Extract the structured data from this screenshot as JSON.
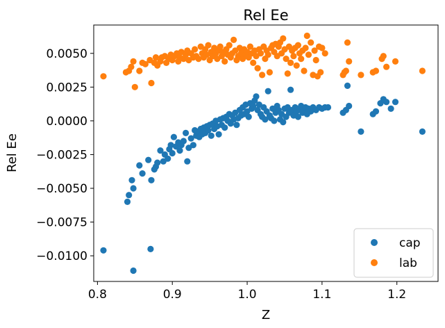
{
  "chart_data": {
    "type": "scatter",
    "title": "Rel Ee",
    "xlabel": "Z",
    "ylabel": "Rel Ee",
    "xlim": [
      0.795,
      1.255
    ],
    "ylim": [
      -0.0119,
      0.0071
    ],
    "xticks": [
      0.8,
      0.9,
      1.0,
      1.1,
      1.2
    ],
    "xtick_labels": [
      "0.8",
      "0.9",
      "1.0",
      "1.1",
      "1.2"
    ],
    "yticks": [
      -0.01,
      -0.0075,
      -0.005,
      -0.0025,
      0.0,
      0.0025,
      0.005
    ],
    "ytick_labels": [
      "−0.0100",
      "−0.0075",
      "−0.0050",
      "−0.0025",
      "0.0000",
      "0.0025",
      "0.0050"
    ],
    "grid": false,
    "legend_position": "lower-right",
    "colors": {
      "cap": "#1f77b4",
      "lab": "#ff7f0e"
    },
    "series": [
      {
        "name": "cap",
        "points": [
          [
            0.808,
            -0.0096
          ],
          [
            0.848,
            -0.0111
          ],
          [
            0.871,
            -0.0095
          ],
          [
            0.84,
            -0.006
          ],
          [
            0.842,
            -0.0055
          ],
          [
            0.846,
            -0.0044
          ],
          [
            0.848,
            -0.005
          ],
          [
            0.856,
            -0.0033
          ],
          [
            0.86,
            -0.0039
          ],
          [
            0.868,
            -0.0029
          ],
          [
            0.872,
            -0.0044
          ],
          [
            0.876,
            -0.0036
          ],
          [
            0.878,
            -0.0034
          ],
          [
            0.88,
            -0.0031
          ],
          [
            0.884,
            -0.0022
          ],
          [
            0.888,
            -0.003
          ],
          [
            0.89,
            -0.0025
          ],
          [
            0.894,
            -0.0028
          ],
          [
            0.896,
            -0.0021
          ],
          [
            0.898,
            -0.0018
          ],
          [
            0.9,
            -0.0024
          ],
          [
            0.902,
            -0.0012
          ],
          [
            0.905,
            -0.0019
          ],
          [
            0.908,
            -0.0016
          ],
          [
            0.91,
            -0.0022
          ],
          [
            0.912,
            -0.0018
          ],
          [
            0.915,
            -0.0015
          ],
          [
            0.918,
            -0.0009
          ],
          [
            0.92,
            -0.003
          ],
          [
            0.922,
            -0.002
          ],
          [
            0.925,
            -0.0013
          ],
          [
            0.928,
            -0.0018
          ],
          [
            0.93,
            -0.0007
          ],
          [
            0.932,
            -0.0011
          ],
          [
            0.934,
            -0.0008
          ],
          [
            0.936,
            -0.0012
          ],
          [
            0.938,
            -0.0006
          ],
          [
            0.94,
            -0.001
          ],
          [
            0.942,
            -0.0005
          ],
          [
            0.944,
            -0.0009
          ],
          [
            0.946,
            -0.0004
          ],
          [
            0.948,
            -0.0007
          ],
          [
            0.95,
            -0.0003
          ],
          [
            0.952,
            -0.0011
          ],
          [
            0.954,
            -0.0002
          ],
          [
            0.956,
            -0.0006
          ],
          [
            0.958,
            0.0
          ],
          [
            0.96,
            -0.0004
          ],
          [
            0.962,
            -0.001
          ],
          [
            0.964,
            0.0001
          ],
          [
            0.966,
            -0.0003
          ],
          [
            0.968,
            0.0002
          ],
          [
            0.97,
            -0.0005
          ],
          [
            0.972,
            0.0003
          ],
          [
            0.974,
            0.0
          ],
          [
            0.976,
            0.0005
          ],
          [
            0.978,
            -0.0002
          ],
          [
            0.98,
            0.0004
          ],
          [
            0.982,
            0.0001
          ],
          [
            0.984,
            0.0006
          ],
          [
            0.986,
            -0.0003
          ],
          [
            0.988,
            0.0002
          ],
          [
            0.99,
            0.0008
          ],
          [
            0.992,
            0.0004
          ],
          [
            0.994,
            0.001
          ],
          [
            0.996,
            0.0005
          ],
          [
            0.998,
            0.0012
          ],
          [
            1.0,
            0.0007
          ],
          [
            1.002,
            0.0003
          ],
          [
            1.004,
            0.0013
          ],
          [
            1.006,
            0.0009
          ],
          [
            1.008,
            0.0011
          ],
          [
            1.01,
            0.0015
          ],
          [
            1.012,
            0.0018
          ],
          [
            1.014,
            0.0008
          ],
          [
            1.016,
            0.0012
          ],
          [
            1.018,
            0.0005
          ],
          [
            1.02,
            0.0003
          ],
          [
            1.022,
            0.001
          ],
          [
            1.024,
            0.0001
          ],
          [
            1.026,
            0.0007
          ],
          [
            1.028,
            0.0022
          ],
          [
            1.03,
            0.0004
          ],
          [
            1.032,
            0.0002
          ],
          [
            1.034,
            0.0009
          ],
          [
            1.036,
            0.0
          ],
          [
            1.038,
            0.0006
          ],
          [
            1.04,
            0.0011
          ],
          [
            1.042,
            0.0008
          ],
          [
            1.044,
            0.0001
          ],
          [
            1.046,
            0.0005
          ],
          [
            1.048,
            -0.0001
          ],
          [
            1.05,
            0.0009
          ],
          [
            1.052,
            0.0003
          ],
          [
            1.054,
            0.001
          ],
          [
            1.056,
            0.0006
          ],
          [
            1.058,
            0.0023
          ],
          [
            1.06,
            0.0008
          ],
          [
            1.062,
            0.0004
          ],
          [
            1.064,
            0.001
          ],
          [
            1.066,
            0.0007
          ],
          [
            1.068,
            0.0003
          ],
          [
            1.07,
            0.0009
          ],
          [
            1.072,
            0.0011
          ],
          [
            1.074,
            0.0006
          ],
          [
            1.076,
            0.0008
          ],
          [
            1.078,
            0.001
          ],
          [
            1.08,
            0.0005
          ],
          [
            1.082,
            0.0009
          ],
          [
            1.085,
            0.0007
          ],
          [
            1.088,
            0.001
          ],
          [
            1.092,
            0.0008
          ],
          [
            1.096,
            0.001
          ],
          [
            1.1,
            0.0009
          ],
          [
            1.104,
            0.001
          ],
          [
            1.108,
            0.001
          ],
          [
            1.128,
            0.0006
          ],
          [
            1.132,
            0.0008
          ],
          [
            1.134,
            0.0026
          ],
          [
            1.136,
            0.0011
          ],
          [
            1.152,
            -0.0008
          ],
          [
            1.168,
            0.0005
          ],
          [
            1.172,
            0.0007
          ],
          [
            1.178,
            0.0013
          ],
          [
            1.182,
            0.0016
          ],
          [
            1.186,
            0.0014
          ],
          [
            1.192,
            0.0009
          ],
          [
            1.198,
            0.0014
          ],
          [
            1.234,
            -0.0008
          ]
        ]
      },
      {
        "name": "lab",
        "points": [
          [
            0.808,
            0.0033
          ],
          [
            0.838,
            0.0036
          ],
          [
            0.842,
            0.0037
          ],
          [
            0.845,
            0.004
          ],
          [
            0.848,
            0.0044
          ],
          [
            0.85,
            0.0025
          ],
          [
            0.856,
            0.0037
          ],
          [
            0.86,
            0.0043
          ],
          [
            0.864,
            0.0042
          ],
          [
            0.87,
            0.0045
          ],
          [
            0.872,
            0.0028
          ],
          [
            0.876,
            0.0043
          ],
          [
            0.878,
            0.0047
          ],
          [
            0.88,
            0.0041
          ],
          [
            0.884,
            0.0044
          ],
          [
            0.886,
            0.0047
          ],
          [
            0.89,
            0.0048
          ],
          [
            0.892,
            0.0043
          ],
          [
            0.895,
            0.0046
          ],
          [
            0.898,
            0.0049
          ],
          [
            0.9,
            0.0045
          ],
          [
            0.903,
            0.0048
          ],
          [
            0.906,
            0.005
          ],
          [
            0.908,
            0.0044
          ],
          [
            0.91,
            0.0047
          ],
          [
            0.912,
            0.0051
          ],
          [
            0.915,
            0.0046
          ],
          [
            0.918,
            0.0049
          ],
          [
            0.92,
            0.0052
          ],
          [
            0.922,
            0.0045
          ],
          [
            0.925,
            0.005
          ],
          [
            0.928,
            0.0047
          ],
          [
            0.93,
            0.0053
          ],
          [
            0.932,
            0.0048
          ],
          [
            0.935,
            0.0046
          ],
          [
            0.938,
            0.0055
          ],
          [
            0.94,
            0.005
          ],
          [
            0.942,
            0.0047
          ],
          [
            0.944,
            0.0053
          ],
          [
            0.946,
            0.0049
          ],
          [
            0.948,
            0.0056
          ],
          [
            0.95,
            0.0045
          ],
          [
            0.952,
            0.0051
          ],
          [
            0.954,
            0.0048
          ],
          [
            0.956,
            0.0054
          ],
          [
            0.958,
            0.005
          ],
          [
            0.96,
            0.0046
          ],
          [
            0.962,
            0.0052
          ],
          [
            0.964,
            0.0055
          ],
          [
            0.966,
            0.0048
          ],
          [
            0.968,
            0.0051
          ],
          [
            0.97,
            0.0044
          ],
          [
            0.972,
            0.0053
          ],
          [
            0.974,
            0.0049
          ],
          [
            0.976,
            0.0056
          ],
          [
            0.978,
            0.0047
          ],
          [
            0.98,
            0.005
          ],
          [
            0.982,
            0.006
          ],
          [
            0.984,
            0.0052
          ],
          [
            0.986,
            0.0045
          ],
          [
            0.988,
            0.0048
          ],
          [
            0.99,
            0.0054
          ],
          [
            0.992,
            0.005
          ],
          [
            0.994,
            0.0046
          ],
          [
            0.996,
            0.0053
          ],
          [
            0.998,
            0.0049
          ],
          [
            1.0,
            0.0051
          ],
          [
            1.002,
            0.0047
          ],
          [
            1.004,
            0.0055
          ],
          [
            1.006,
            0.005
          ],
          [
            1.008,
            0.0043
          ],
          [
            1.01,
            0.0052
          ],
          [
            1.012,
            0.0048
          ],
          [
            1.014,
            0.0039
          ],
          [
            1.016,
            0.0053
          ],
          [
            1.018,
            0.005
          ],
          [
            1.02,
            0.0034
          ],
          [
            1.022,
            0.0055
          ],
          [
            1.024,
            0.0046
          ],
          [
            1.026,
            0.0052
          ],
          [
            1.028,
            0.0049
          ],
          [
            1.03,
            0.0036
          ],
          [
            1.032,
            0.0054
          ],
          [
            1.034,
            0.0056
          ],
          [
            1.036,
            0.0051
          ],
          [
            1.038,
            0.0057
          ],
          [
            1.04,
            0.0048
          ],
          [
            1.042,
            0.0055
          ],
          [
            1.044,
            0.0058
          ],
          [
            1.046,
            0.005
          ],
          [
            1.048,
            0.0061
          ],
          [
            1.05,
            0.0053
          ],
          [
            1.052,
            0.0046
          ],
          [
            1.054,
            0.0035
          ],
          [
            1.056,
            0.0055
          ],
          [
            1.058,
            0.0043
          ],
          [
            1.06,
            0.0052
          ],
          [
            1.062,
            0.0048
          ],
          [
            1.064,
            0.0054
          ],
          [
            1.066,
            0.0041
          ],
          [
            1.068,
            0.0056
          ],
          [
            1.07,
            0.005
          ],
          [
            1.072,
            0.0046
          ],
          [
            1.074,
            0.0052
          ],
          [
            1.076,
            0.0037
          ],
          [
            1.078,
            0.0054
          ],
          [
            1.08,
            0.0063
          ],
          [
            1.082,
            0.0049
          ],
          [
            1.085,
            0.0058
          ],
          [
            1.088,
            0.0034
          ],
          [
            1.09,
            0.0052
          ],
          [
            1.092,
            0.0045
          ],
          [
            1.094,
            0.0033
          ],
          [
            1.096,
            0.0055
          ],
          [
            1.098,
            0.0036
          ],
          [
            1.1,
            0.0054
          ],
          [
            1.104,
            0.005
          ],
          [
            1.128,
            0.0034
          ],
          [
            1.13,
            0.0036
          ],
          [
            1.132,
            0.0037
          ],
          [
            1.134,
            0.0058
          ],
          [
            1.136,
            0.0044
          ],
          [
            1.152,
            0.0034
          ],
          [
            1.168,
            0.0036
          ],
          [
            1.172,
            0.0037
          ],
          [
            1.18,
            0.0046
          ],
          [
            1.182,
            0.0048
          ],
          [
            1.186,
            0.004
          ],
          [
            1.198,
            0.0044
          ],
          [
            1.234,
            0.0037
          ]
        ]
      }
    ]
  }
}
